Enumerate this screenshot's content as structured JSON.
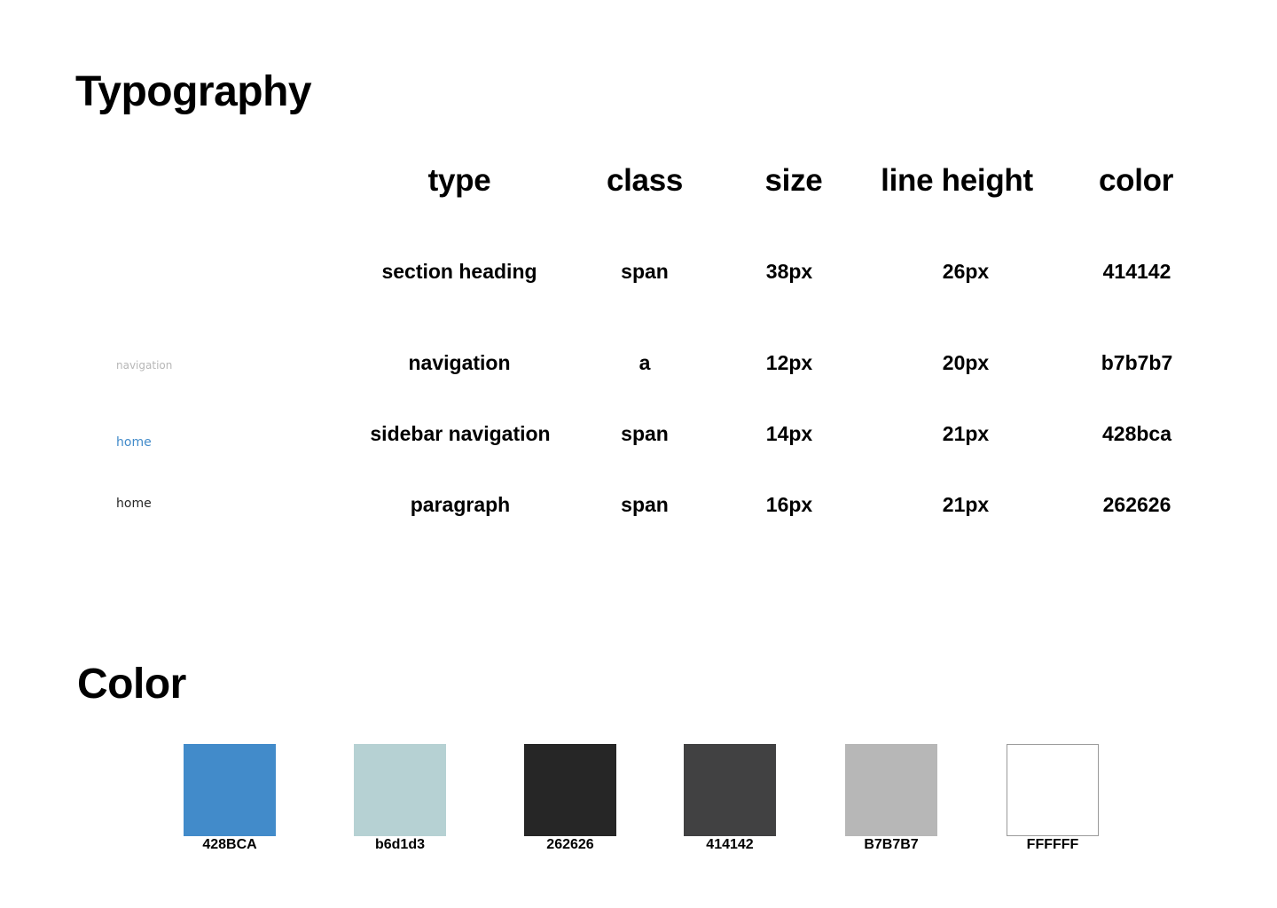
{
  "typography": {
    "title": "Typography",
    "headers": {
      "type": "type",
      "class": "class",
      "size": "size",
      "line_height": "line height",
      "color": "color"
    },
    "rows": [
      {
        "sample": "",
        "type": "section heading",
        "class": "span",
        "size": "38px",
        "line_height": "26px",
        "color": "414142"
      },
      {
        "sample": "navigation",
        "sample_color": "#b7b7b7",
        "type": "navigation",
        "class": "a",
        "size": "12px",
        "line_height": "20px",
        "color": "b7b7b7"
      },
      {
        "sample": "home",
        "sample_color": "#428bca",
        "type": "sidebar navigation",
        "class": "span",
        "size": "14px",
        "line_height": "21px",
        "color": "428bca"
      },
      {
        "sample": "home",
        "sample_color": "#262626",
        "type": "paragraph",
        "class": "span",
        "size": "16px",
        "line_height": "21px",
        "color": "262626"
      }
    ]
  },
  "color": {
    "title": "Color",
    "swatches": [
      {
        "label": "428BCA",
        "hex": "#428bca"
      },
      {
        "label": "b6d1d3",
        "hex": "#b6d1d3"
      },
      {
        "label": "262626",
        "hex": "#262626"
      },
      {
        "label": "414142",
        "hex": "#414142"
      },
      {
        "label": "B7B7B7",
        "hex": "#b7b7b7"
      },
      {
        "label": "FFFFFF",
        "hex": "#ffffff"
      }
    ]
  }
}
